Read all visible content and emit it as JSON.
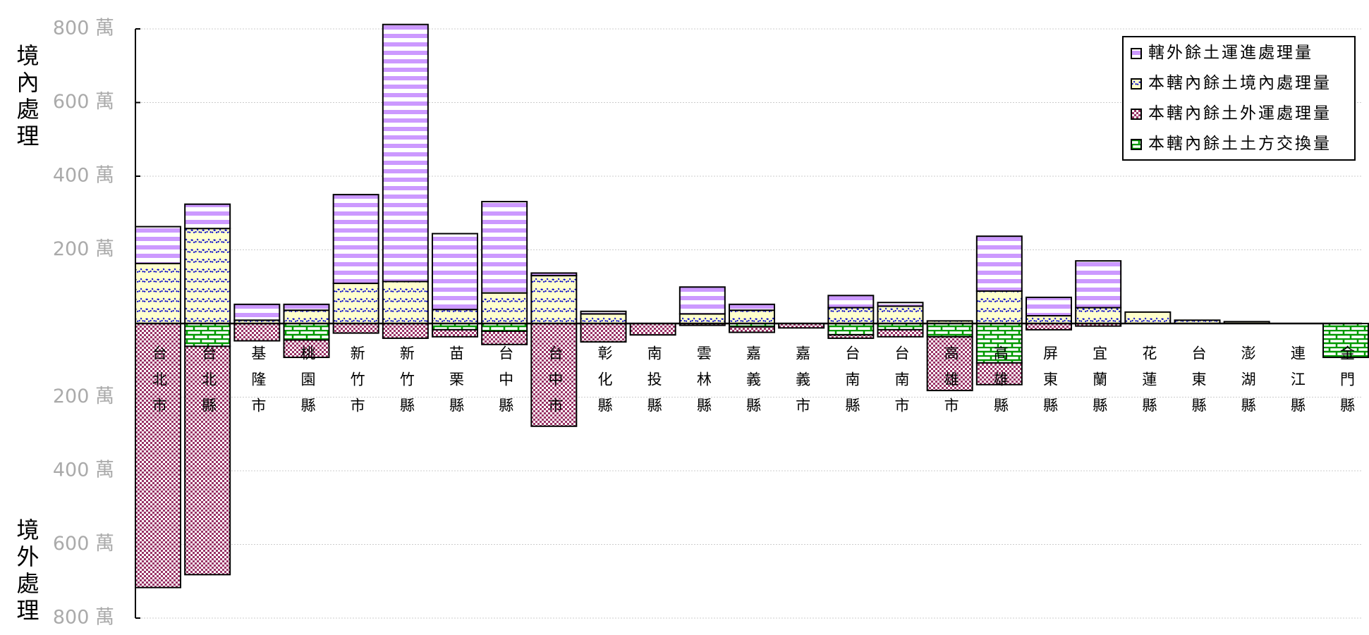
{
  "chart_data": {
    "type": "bar",
    "categories": [
      "台北市",
      "台北縣",
      "基隆市",
      "桃園縣",
      "新竹市",
      "新竹縣",
      "苗栗縣",
      "台中縣",
      "台中市",
      "彰化縣",
      "南投縣",
      "雲林縣",
      "嘉義縣",
      "嘉義市",
      "台南縣",
      "台南市",
      "高雄市",
      "高雄縣",
      "屏東縣",
      "宜蘭縣",
      "花蓮縣",
      "台東縣",
      "澎湖縣",
      "連江縣",
      "金門縣"
    ],
    "series": [
      {
        "name": "轄外餘土運進處理量",
        "color": "#cc99ff",
        "values": [
          100,
          66,
          43,
          16,
          241,
          698,
          206,
          248,
          7,
          7,
          0,
          73,
          16,
          0,
          33,
          10,
          0,
          149,
          50,
          127,
          0,
          0,
          0,
          0,
          0
        ]
      },
      {
        "name": "本轄內餘土境內處理量",
        "color": "#0000cc",
        "values": [
          163,
          258,
          9,
          36,
          109,
          114,
          38,
          83,
          130,
          26,
          0,
          26,
          36,
          0,
          43,
          47,
          7,
          88,
          21,
          43,
          31,
          9,
          5,
          0,
          0
        ]
      },
      {
        "name": "本轄內餘土外運處理量",
        "color": "#993366",
        "values": [
          -717,
          -620,
          -47,
          -47,
          -26,
          -40,
          -19,
          -36,
          -279,
          -50,
          -31,
          -5,
          -15,
          -12,
          -9,
          -19,
          -146,
          -59,
          -17,
          -7,
          0,
          0,
          0,
          0,
          0
        ]
      },
      {
        "name": "本轄內餘土土方交換量",
        "color": "#009900",
        "values": [
          0,
          -62,
          0,
          -45,
          0,
          0,
          -17,
          -21,
          0,
          0,
          0,
          0,
          -9,
          0,
          -31,
          -17,
          -36,
          -107,
          0,
          0,
          0,
          0,
          0,
          0,
          -92
        ]
      }
    ],
    "ylim": [
      -800,
      800
    ],
    "yticks": [
      {
        "value": 800,
        "label": "800 萬"
      },
      {
        "value": 600,
        "label": "600 萬"
      },
      {
        "value": 400,
        "label": "400 萬"
      },
      {
        "value": 200,
        "label": "200 萬"
      },
      {
        "value": -200,
        "label": "200 萬"
      },
      {
        "value": -400,
        "label": "400 萬"
      },
      {
        "value": -600,
        "label": "600 萬"
      },
      {
        "value": -800,
        "label": "800 萬"
      }
    ],
    "ylabel_top": "境內處理",
    "ylabel_bottom": "境外處理",
    "grid": true,
    "legend": "upper right"
  }
}
